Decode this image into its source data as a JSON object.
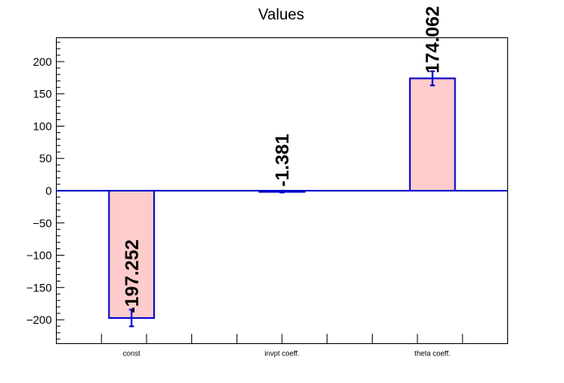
{
  "chart_data": {
    "type": "bar",
    "title": "Values",
    "xlabel": "",
    "ylabel": "",
    "categories": [
      "const",
      "invpt coeff.",
      "theta coeff."
    ],
    "values": [
      -197.252,
      -1.381,
      174.062
    ],
    "errors": [
      13,
      1.5,
      11
    ],
    "data_labels": [
      "-197.252",
      "-1.381",
      "174.062"
    ],
    "ylim": [
      -237,
      237
    ],
    "yticks": [
      -200,
      -150,
      -100,
      -50,
      0,
      50,
      100,
      150,
      200
    ],
    "ytick_labels": [
      "−200",
      "−150",
      "−100",
      "−50",
      "0",
      "50",
      "100",
      "150",
      "200"
    ],
    "grid": false,
    "legend": "none",
    "colors": {
      "bar_fill": "#ffcccc",
      "bar_edge": "#0000cc",
      "error_bar": "#0000cc",
      "zero_line": "#0000cc",
      "axis": "#000000"
    }
  }
}
